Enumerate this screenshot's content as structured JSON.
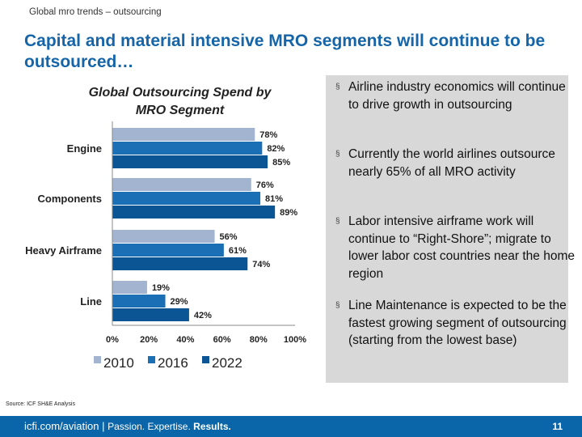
{
  "header": {
    "section": "Global mro trends – outsourcing",
    "title": "Capital and material intensive MRO segments will continue to be outsourced…"
  },
  "chart_data": {
    "type": "bar",
    "orientation": "horizontal",
    "title": "Global Outsourcing Spend by MRO Segment",
    "categories": [
      "Engine",
      "Components",
      "Heavy Airframe",
      "Line"
    ],
    "series": [
      {
        "name": "2010",
        "color": "#a3b4d0",
        "values": [
          78,
          76,
          56,
          19
        ],
        "labels": [
          "78%",
          "76%",
          "56%",
          "19%"
        ]
      },
      {
        "name": "2016",
        "color": "#1a6fb5",
        "values": [
          82,
          81,
          61,
          29
        ],
        "labels": [
          "82%",
          "81%",
          "61%",
          "29%"
        ]
      },
      {
        "name": "2022",
        "color": "#0b5594",
        "values": [
          85,
          89,
          74,
          42
        ],
        "labels": [
          "85%",
          "89%",
          "74%",
          "42%"
        ]
      }
    ],
    "xlim": [
      0,
      100
    ],
    "xticks": [
      "0%",
      "20%",
      "40%",
      "60%",
      "80%",
      "100%"
    ],
    "legend": "bottom",
    "grid": false
  },
  "bullets": [
    "Airline industry economics will continue to drive growth in outsourcing",
    "Currently the world airlines outsource nearly 65% of all MRO activity",
    "Labor intensive airframe work will continue to “Right-Shore”; migrate to lower labor cost countries near the home region",
    "Line Maintenance is expected to be the fastest growing segment of outsourcing (starting from the lowest base)"
  ],
  "bullet_marker": "§",
  "source": "Source: ICF SH&E Analysis",
  "footer": {
    "url": "icfi.com/aviation | ",
    "tag1": "Passion. Expertise. ",
    "tag2": "Results.",
    "page": "11"
  }
}
